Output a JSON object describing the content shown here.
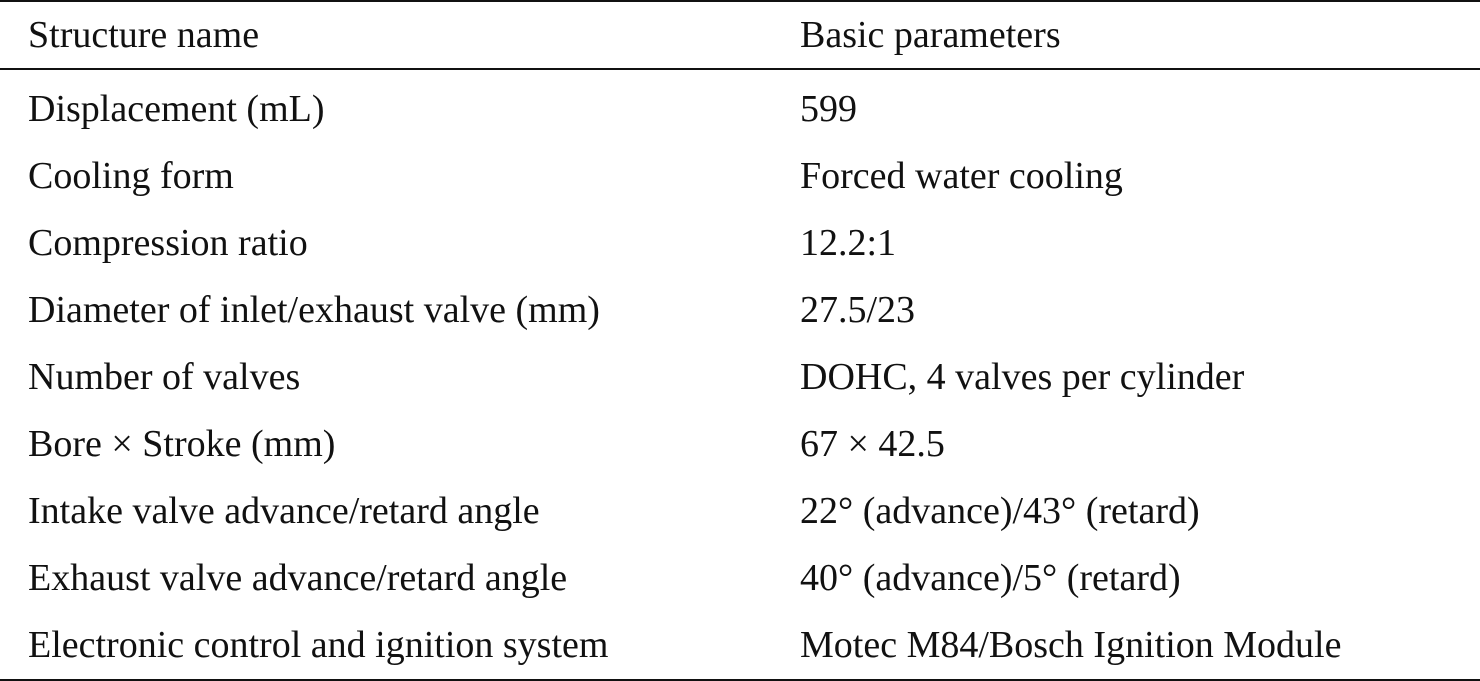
{
  "table": {
    "headers": {
      "structure": "Structure name",
      "parameters": "Basic parameters"
    },
    "rows": [
      {
        "name": "Displacement (mL)",
        "value": "599"
      },
      {
        "name": "Cooling form",
        "value": "Forced water cooling"
      },
      {
        "name": "Compression ratio",
        "value": "12.2:1"
      },
      {
        "name": "Diameter of inlet/exhaust valve (mm)",
        "value": "27.5/23"
      },
      {
        "name": "Number of valves",
        "value": "DOHC, 4 valves per cylinder"
      },
      {
        "name": "Bore × Stroke (mm)",
        "value": "67 × 42.5"
      },
      {
        "name": "Intake valve advance/retard angle",
        "value": "22° (advance)/43° (retard)"
      },
      {
        "name": "Exhaust valve advance/retard angle",
        "value": "40° (advance)/5° (retard)"
      },
      {
        "name": "Electronic control and ignition system",
        "value": "Motec M84/Bosch Ignition Module"
      }
    ]
  }
}
